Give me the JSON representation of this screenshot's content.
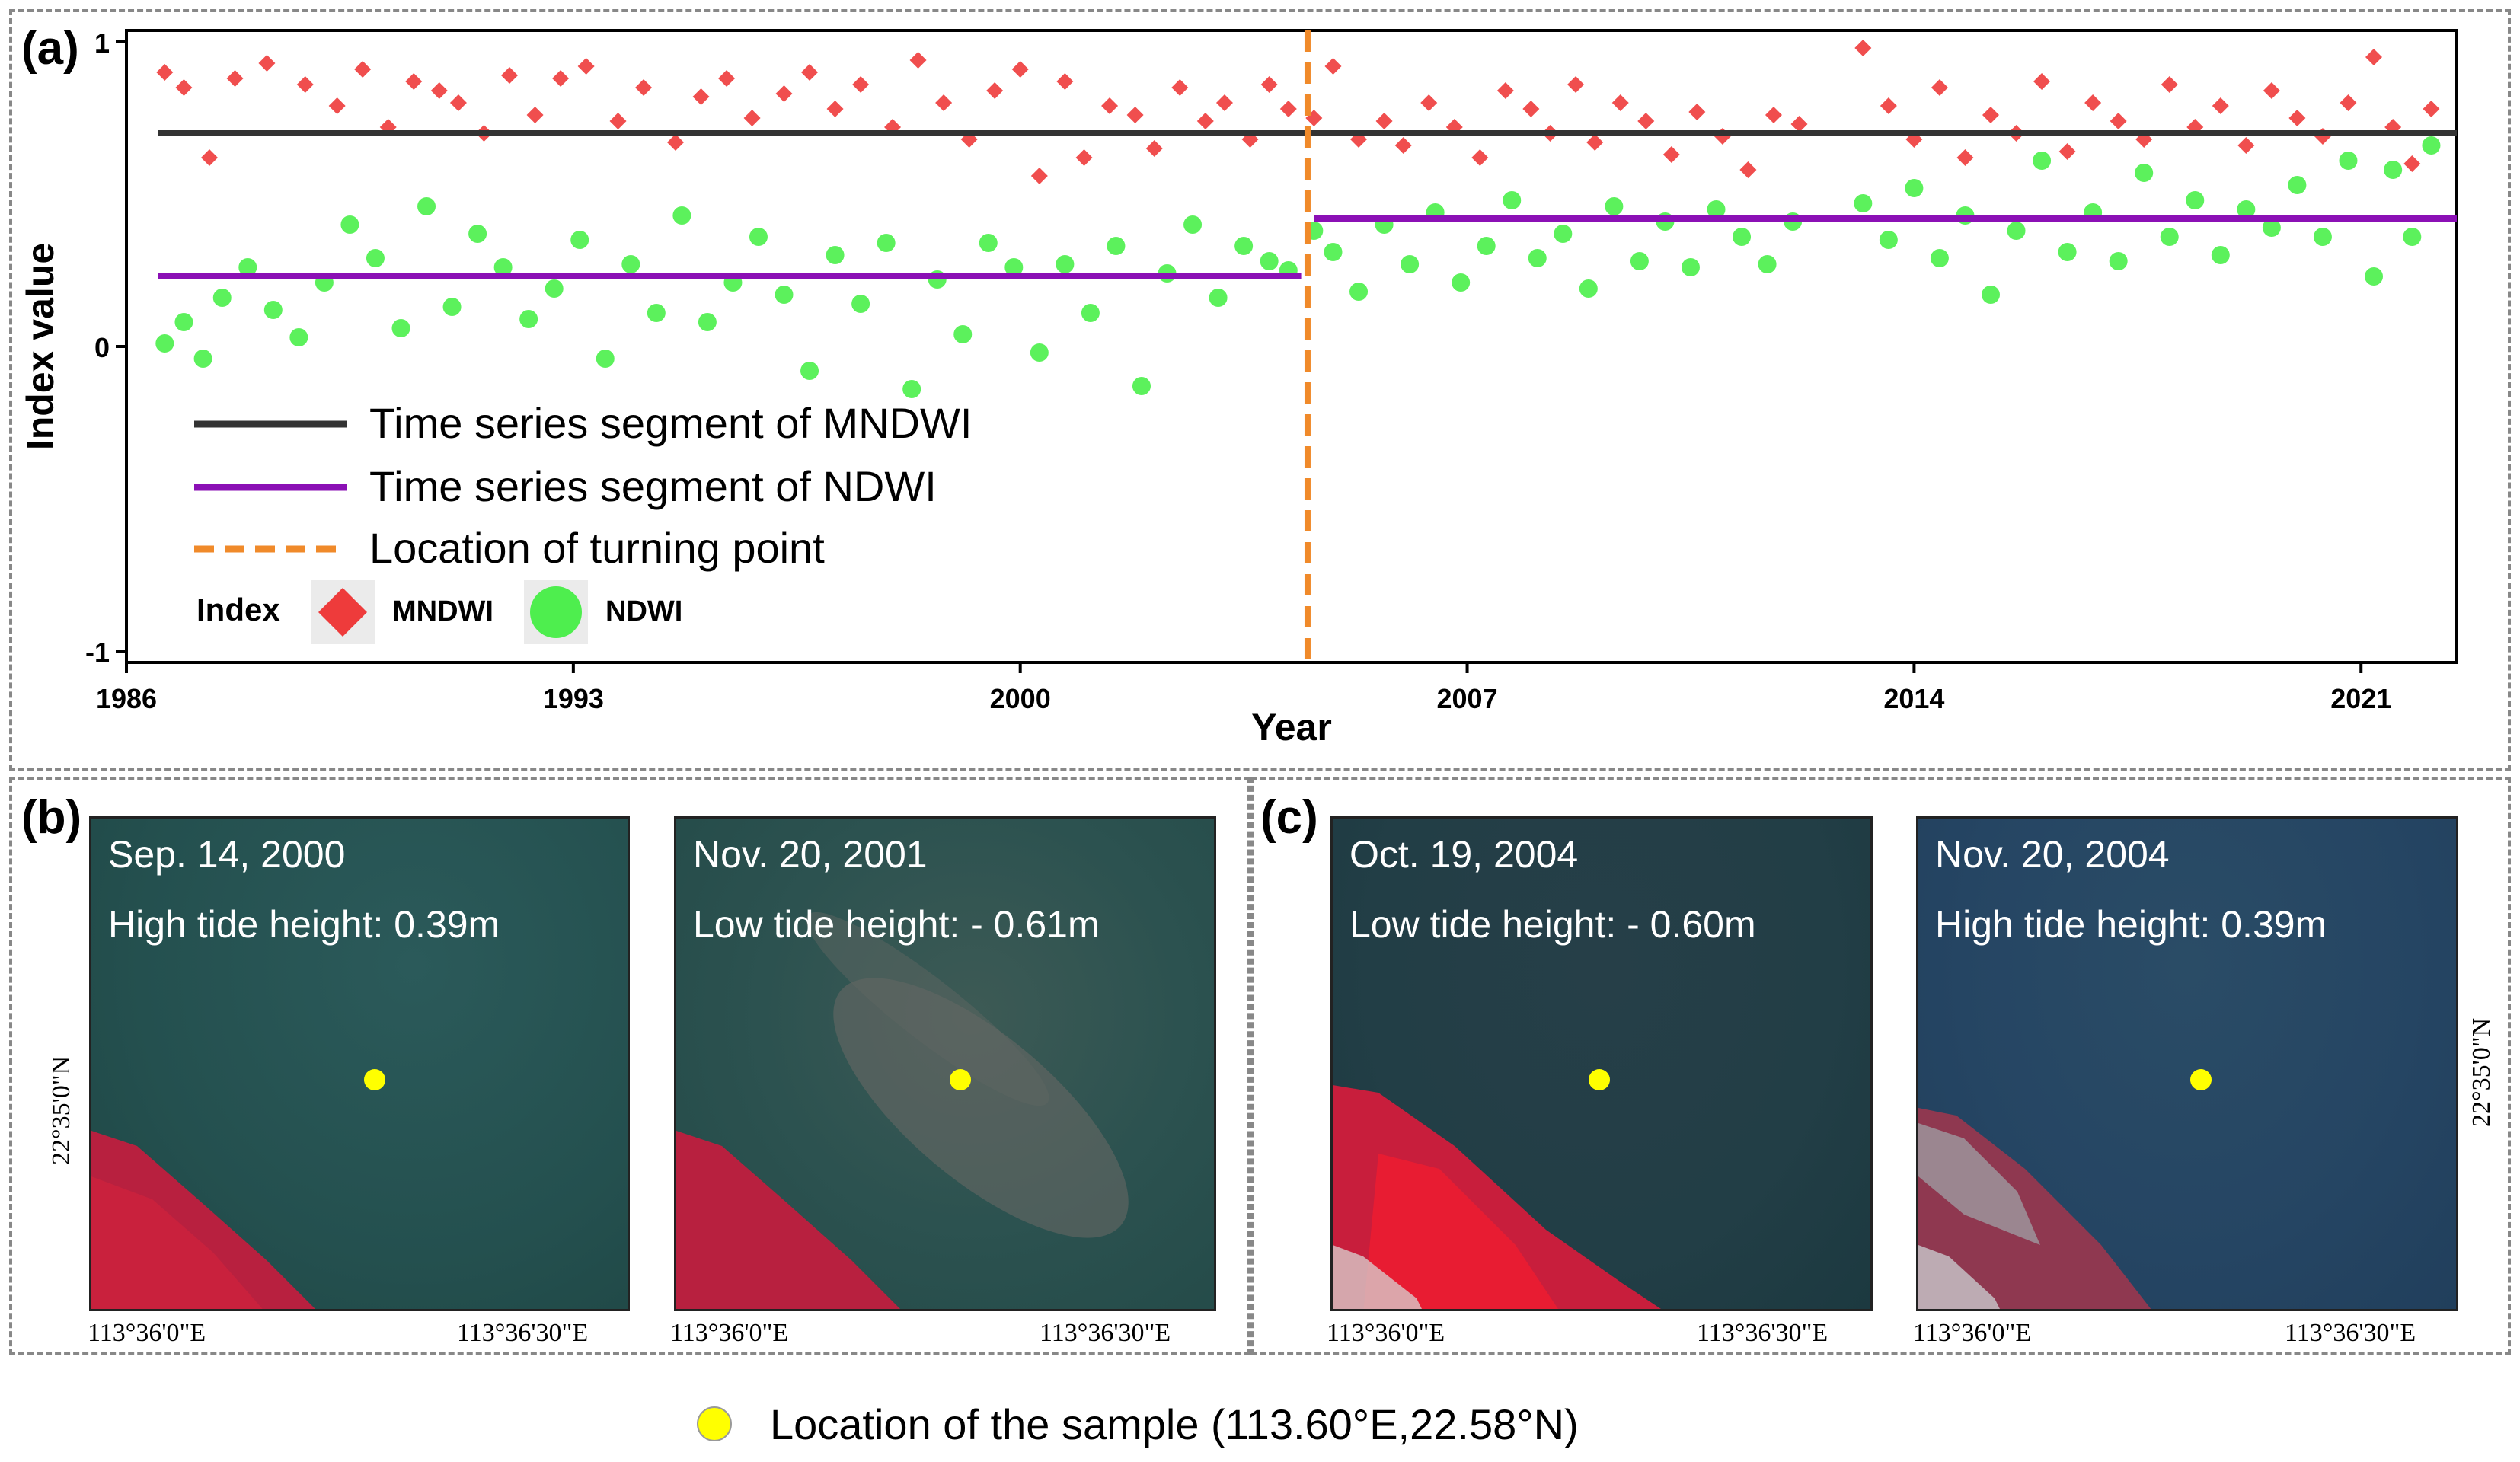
{
  "panel_labels": {
    "a": "(a)",
    "b": "(b)",
    "c": "(c)"
  },
  "chart_data": {
    "type": "scatter",
    "xlabel": "Year",
    "ylabel": "Index value",
    "xlim": [
      1986,
      2022.5
    ],
    "ylim": [
      -1,
      1
    ],
    "xticks": [
      1986,
      1993,
      2000,
      2007,
      2014,
      2021
    ],
    "yticks": [
      -1,
      0,
      1
    ],
    "turning_point": 2004.5,
    "segments": [
      {
        "name": "Time series segment of MNDWI",
        "color": "#333333",
        "x": [
          1986.5,
          2022.5
        ],
        "y": [
          0.7,
          0.7
        ]
      },
      {
        "name": "Time series segment of NDWI",
        "color": "#8b10b5",
        "x": [
          1986.5,
          2004.4
        ],
        "y": [
          0.23,
          0.23
        ]
      },
      {
        "name": "Time series segment of NDWI",
        "color": "#8b10b5",
        "x": [
          2004.6,
          2022.5
        ],
        "y": [
          0.42,
          0.42
        ]
      }
    ],
    "legend": {
      "lines": [
        {
          "label": "Time series segment of MNDWI",
          "color": "#333333",
          "style": "solid"
        },
        {
          "label": "Time series segment of NDWI",
          "color": "#8b10b5",
          "style": "solid"
        },
        {
          "label": "Location of turning point",
          "color": "#f08a2a",
          "style": "dashed"
        }
      ],
      "index_title": "Index",
      "index_items": [
        {
          "label": "MNDWI",
          "shape": "diamond",
          "color": "#ee3b3b"
        },
        {
          "label": "NDWI",
          "shape": "circle",
          "color": "#33ee33"
        }
      ]
    },
    "series": [
      {
        "name": "MNDWI",
        "shape": "diamond",
        "color": "#ee3b3b",
        "x": [
          1986.6,
          1986.9,
          1987.3,
          1987.7,
          1988.2,
          1988.8,
          1989.3,
          1989.7,
          1990.1,
          1990.5,
          1990.9,
          1991.2,
          1991.6,
          1992.0,
          1992.4,
          1992.8,
          1993.2,
          1993.7,
          1994.1,
          1994.6,
          1995.0,
          1995.4,
          1995.8,
          1996.3,
          1996.7,
          1997.1,
          1997.5,
          1998.0,
          1998.4,
          1998.8,
          1999.2,
          1999.6,
          2000.0,
          2000.3,
          2000.7,
          2001.0,
          2001.4,
          2001.8,
          2002.1,
          2002.5,
          2002.9,
          2003.2,
          2003.6,
          2003.9,
          2004.2,
          2004.6,
          2004.9,
          2005.3,
          2005.7,
          2006.0,
          2006.4,
          2006.8,
          2007.2,
          2007.6,
          2008.0,
          2008.3,
          2008.7,
          2009.0,
          2009.4,
          2009.8,
          2010.2,
          2010.6,
          2011.0,
          2011.4,
          2011.8,
          2012.2,
          2013.2,
          2013.6,
          2014.0,
          2014.4,
          2014.8,
          2015.2,
          2015.6,
          2016.0,
          2016.4,
          2016.8,
          2017.2,
          2017.6,
          2018.0,
          2018.4,
          2018.8,
          2019.2,
          2019.6,
          2020.0,
          2020.4,
          2020.8,
          2021.2,
          2021.5,
          2021.8,
          2022.1
        ],
        "y": [
          0.9,
          0.85,
          0.62,
          0.88,
          0.93,
          0.86,
          0.79,
          0.91,
          0.72,
          0.87,
          0.84,
          0.8,
          0.7,
          0.89,
          0.76,
          0.88,
          0.92,
          0.74,
          0.85,
          0.67,
          0.82,
          0.88,
          0.75,
          0.83,
          0.9,
          0.78,
          0.86,
          0.72,
          0.94,
          0.8,
          0.68,
          0.84,
          0.91,
          0.56,
          0.87,
          0.62,
          0.79,
          0.76,
          0.65,
          0.85,
          0.74,
          0.8,
          0.68,
          0.86,
          0.78,
          0.75,
          0.92,
          0.68,
          0.74,
          0.66,
          0.8,
          0.72,
          0.62,
          0.84,
          0.78,
          0.7,
          0.86,
          0.67,
          0.8,
          0.74,
          0.63,
          0.77,
          0.69,
          0.58,
          0.76,
          0.73,
          0.98,
          0.79,
          0.68,
          0.85,
          0.62,
          0.76,
          0.7,
          0.87,
          0.64,
          0.8,
          0.74,
          0.68,
          0.86,
          0.72,
          0.79,
          0.66,
          0.84,
          0.75,
          0.69,
          0.8,
          0.95,
          0.72,
          0.6,
          0.78
        ]
      },
      {
        "name": "NDWI",
        "shape": "circle",
        "color": "#33ee33",
        "x": [
          1986.6,
          1986.9,
          1987.2,
          1987.5,
          1987.9,
          1988.3,
          1988.7,
          1989.1,
          1989.5,
          1989.9,
          1990.3,
          1990.7,
          1991.1,
          1991.5,
          1991.9,
          1992.3,
          1992.7,
          1993.1,
          1993.5,
          1993.9,
          1994.3,
          1994.7,
          1995.1,
          1995.5,
          1995.9,
          1996.3,
          1996.7,
          1997.1,
          1997.5,
          1997.9,
          1998.3,
          1998.7,
          1999.1,
          1999.5,
          1999.9,
          2000.3,
          2000.7,
          2001.1,
          2001.5,
          2001.9,
          2002.3,
          2002.7,
          2003.1,
          2003.5,
          2003.9,
          2004.2,
          2004.6,
          2004.9,
          2005.3,
          2005.7,
          2006.1,
          2006.5,
          2006.9,
          2007.3,
          2007.7,
          2008.1,
          2008.5,
          2008.9,
          2009.3,
          2009.7,
          2010.1,
          2010.5,
          2010.9,
          2011.3,
          2011.7,
          2012.1,
          2013.2,
          2013.6,
          2014.0,
          2014.4,
          2014.8,
          2015.2,
          2015.6,
          2016.0,
          2016.4,
          2016.8,
          2017.2,
          2017.6,
          2018.0,
          2018.4,
          2018.8,
          2019.2,
          2019.6,
          2020.0,
          2020.4,
          2020.8,
          2021.2,
          2021.5,
          2021.8,
          2022.1
        ],
        "y": [
          0.01,
          0.08,
          -0.04,
          0.16,
          0.26,
          0.12,
          0.03,
          0.21,
          0.4,
          0.29,
          0.06,
          0.46,
          0.13,
          0.37,
          0.26,
          0.09,
          0.19,
          0.35,
          -0.04,
          0.27,
          0.11,
          0.43,
          0.08,
          0.21,
          0.36,
          0.17,
          -0.08,
          0.3,
          0.14,
          0.34,
          -0.14,
          0.22,
          0.04,
          0.34,
          0.26,
          -0.02,
          0.27,
          0.11,
          0.33,
          -0.13,
          0.24,
          0.4,
          0.16,
          0.33,
          0.28,
          0.25,
          0.38,
          0.31,
          0.18,
          0.4,
          0.27,
          0.44,
          0.21,
          0.33,
          0.48,
          0.29,
          0.37,
          0.19,
          0.46,
          0.28,
          0.41,
          0.26,
          0.45,
          0.36,
          0.27,
          0.41,
          0.47,
          0.35,
          0.52,
          0.29,
          0.43,
          0.17,
          0.38,
          0.61,
          0.31,
          0.44,
          0.28,
          0.57,
          0.36,
          0.48,
          0.3,
          0.45,
          0.39,
          0.53,
          0.36,
          0.61,
          0.23,
          0.58,
          0.36,
          0.66
        ]
      }
    ]
  },
  "panels": {
    "b": [
      {
        "date": "Sep. 14, 2000",
        "tide": "High tide height: 0.39m",
        "lon_left": "113°36'0\"E",
        "lon_right": "113°36'30\"E"
      },
      {
        "date": "Nov. 20, 2001",
        "tide": "Low tide height: - 0.61m",
        "lon_left": "113°36'0\"E",
        "lon_right": "113°36'30\"E"
      }
    ],
    "c": [
      {
        "date": "Oct. 19, 2004",
        "tide": "Low tide height: - 0.60m",
        "lon_left": "113°36'0\"E",
        "lon_right": "113°36'30\"E"
      },
      {
        "date": "Nov. 20, 2004",
        "tide": "High tide height: 0.39m",
        "lon_left": "113°36'0\"E",
        "lon_right": "113°36'30\"E"
      }
    ],
    "lat_label": "22°35'0\"N"
  },
  "sample_legend": "Location of the sample (113.60°E,22.58°N)",
  "colors": {
    "sample_dot": "#ffff00",
    "turning_point": "#f08a2a"
  }
}
